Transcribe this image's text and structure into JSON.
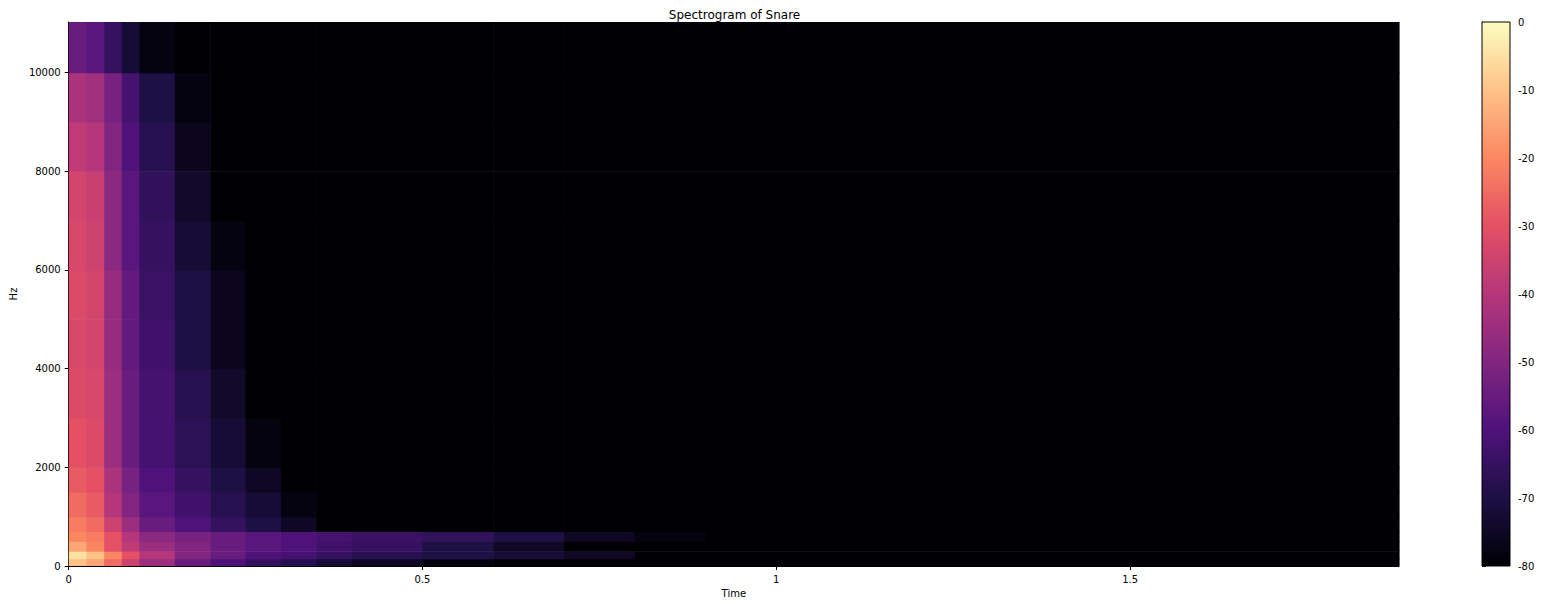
{
  "chart_data": {
    "type": "heatmap",
    "title": "Spectrogram of Snare",
    "x_label": "Time",
    "y_label": "Hz",
    "xlim": [
      0,
      1.88
    ],
    "xticks": [
      0,
      0.5,
      1,
      1.5
    ],
    "ylim": [
      0,
      11025
    ],
    "yticks": [
      0,
      2000,
      4000,
      6000,
      8000,
      10000
    ],
    "grid": false,
    "x_edges": [
      0,
      0.025,
      0.05,
      0.075,
      0.1,
      0.15,
      0.2,
      0.25,
      0.3,
      0.35,
      0.4,
      0.5,
      0.6,
      0.7,
      0.8,
      0.9,
      1.88
    ],
    "y_edges": [
      0,
      150,
      300,
      500,
      700,
      1000,
      1500,
      2000,
      3000,
      4000,
      5000,
      6000,
      7000,
      8000,
      9000,
      10000,
      11025
    ],
    "values": [
      [
        -10,
        -15,
        -25,
        -35,
        -45,
        -55,
        -60,
        -65,
        -68,
        -72,
        -75,
        -78,
        -80,
        -80,
        -80,
        -80
      ],
      [
        -5,
        -10,
        -20,
        -30,
        -40,
        -50,
        -55,
        -60,
        -62,
        -65,
        -68,
        -70,
        -72,
        -75,
        -80,
        -80
      ],
      [
        -15,
        -20,
        -30,
        -38,
        -45,
        -50,
        -55,
        -58,
        -60,
        -63,
        -65,
        -70,
        -75,
        -80,
        -80,
        -80
      ],
      [
        -20,
        -22,
        -30,
        -40,
        -48,
        -52,
        -55,
        -58,
        -60,
        -62,
        -64,
        -66,
        -70,
        -75,
        -78,
        -80
      ],
      [
        -22,
        -25,
        -35,
        -45,
        -55,
        -60,
        -65,
        -70,
        -75,
        -80,
        -80,
        -80,
        -80,
        -80,
        -80,
        -80
      ],
      [
        -25,
        -28,
        -40,
        -50,
        -58,
        -63,
        -68,
        -72,
        -78,
        -80,
        -80,
        -80,
        -80,
        -80,
        -80,
        -80
      ],
      [
        -28,
        -30,
        -42,
        -52,
        -60,
        -65,
        -70,
        -75,
        -80,
        -80,
        -80,
        -80,
        -80,
        -80,
        -80,
        -80
      ],
      [
        -30,
        -32,
        -45,
        -55,
        -62,
        -67,
        -72,
        -78,
        -80,
        -80,
        -80,
        -80,
        -80,
        -80,
        -80,
        -80
      ],
      [
        -32,
        -33,
        -45,
        -55,
        -62,
        -68,
        -74,
        -80,
        -80,
        -80,
        -80,
        -80,
        -80,
        -80,
        -80,
        -80
      ],
      [
        -33,
        -34,
        -46,
        -56,
        -63,
        -70,
        -76,
        -80,
        -80,
        -80,
        -80,
        -80,
        -80,
        -80,
        -80,
        -80
      ],
      [
        -32,
        -34,
        -46,
        -56,
        -64,
        -70,
        -76,
        -80,
        -80,
        -80,
        -80,
        -80,
        -80,
        -80,
        -80,
        -80
      ],
      [
        -33,
        -35,
        -48,
        -58,
        -65,
        -72,
        -78,
        -80,
        -80,
        -80,
        -80,
        -80,
        -80,
        -80,
        -80,
        -80
      ],
      [
        -34,
        -36,
        -48,
        -58,
        -66,
        -74,
        -80,
        -80,
        -80,
        -80,
        -80,
        -80,
        -80,
        -80,
        -80,
        -80
      ],
      [
        -38,
        -40,
        -50,
        -60,
        -68,
        -76,
        -80,
        -80,
        -80,
        -80,
        -80,
        -80,
        -80,
        -80,
        -80,
        -80
      ],
      [
        -42,
        -44,
        -52,
        -62,
        -70,
        -78,
        -80,
        -80,
        -80,
        -80,
        -80,
        -80,
        -80,
        -80,
        -80,
        -80
      ],
      [
        -55,
        -58,
        -65,
        -72,
        -78,
        -80,
        -80,
        -80,
        -80,
        -80,
        -80,
        -80,
        -80,
        -80,
        -80,
        -80
      ]
    ],
    "colorbar_range": [
      -80,
      0
    ],
    "colorbar_ticks": [
      -80,
      -70,
      -60,
      -50,
      -40,
      -30,
      -20,
      -10,
      0
    ]
  }
}
